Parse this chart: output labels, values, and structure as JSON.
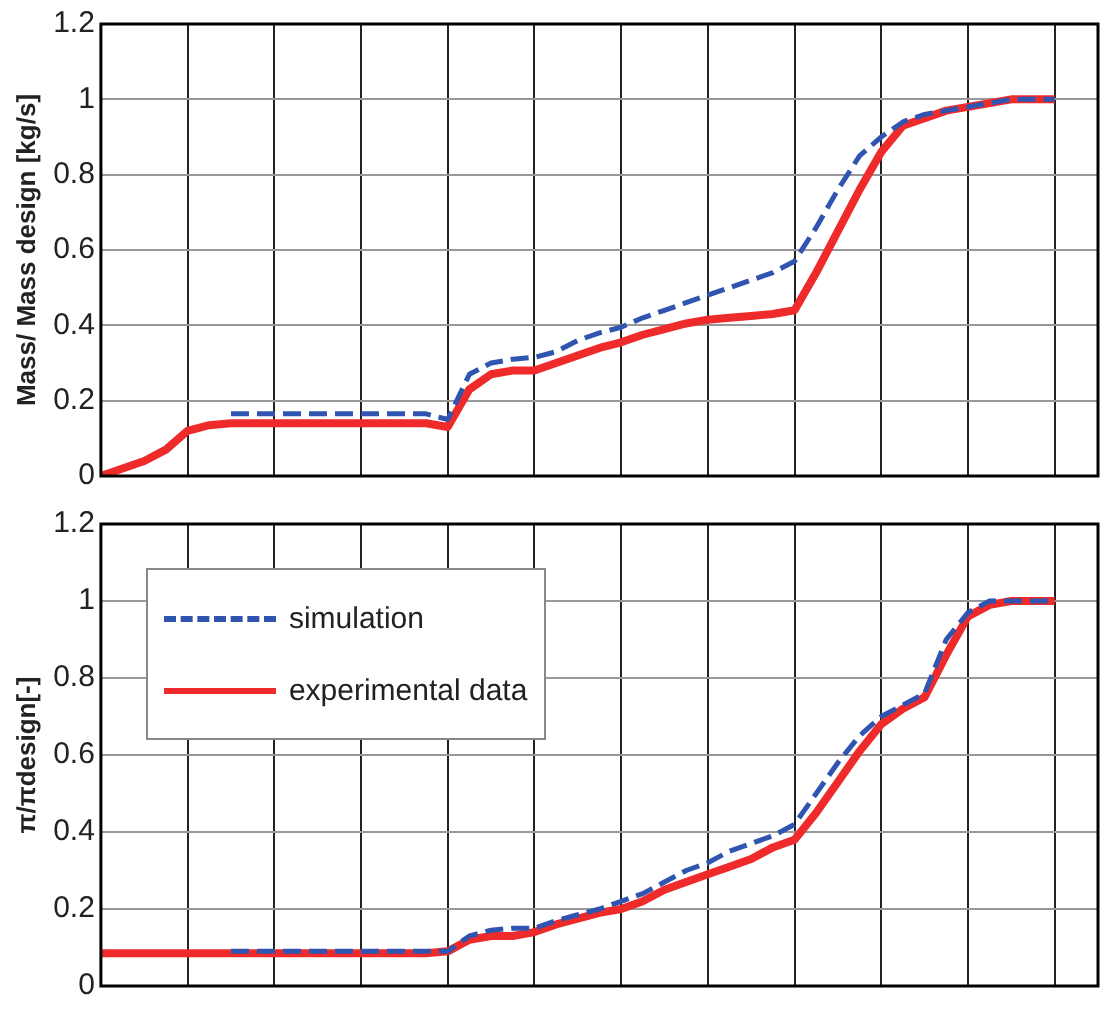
{
  "chart_data": [
    {
      "type": "line",
      "ylabel": "Mass/ Mass design [kg/s]",
      "categories": [
        null,
        null,
        null,
        null,
        null,
        null,
        null,
        null,
        null,
        null,
        null,
        null,
        null,
        null,
        null,
        null,
        null,
        null,
        null,
        null,
        null,
        null,
        null,
        null,
        null,
        null,
        null,
        null,
        null,
        null,
        null,
        null,
        null,
        null,
        null,
        null,
        null,
        null,
        null,
        null,
        null,
        null,
        null,
        null,
        null,
        null,
        null
      ],
      "ylim": [
        0,
        1.2
      ],
      "yticks": [
        0,
        0.2,
        0.4,
        0.6,
        0.8,
        1,
        1.2
      ],
      "grid": true,
      "tick_labels": "y",
      "marker": "none",
      "series": [
        {
          "color": "#2f55b0",
          "line_style": "dashed",
          "values": [
            null,
            null,
            null,
            null,
            null,
            null,
            0.165,
            0.165,
            0.165,
            0.165,
            0.165,
            0.165,
            0.165,
            0.165,
            0.165,
            0.165,
            0.15,
            0.27,
            0.3,
            0.31,
            0.315,
            0.33,
            0.36,
            0.38,
            0.395,
            0.42,
            0.44,
            0.46,
            0.48,
            0.5,
            0.52,
            0.54,
            0.57,
            0.66,
            0.76,
            0.85,
            0.9,
            0.94,
            0.96,
            0.97,
            0.98,
            0.99,
            1,
            1,
            1,
            null,
            null
          ]
        },
        {
          "color": "#ee2a2a",
          "line_style": "solid",
          "values": [
            0,
            0.02,
            0.04,
            0.07,
            0.12,
            0.135,
            0.14,
            0.14,
            0.14,
            0.14,
            0.14,
            0.14,
            0.14,
            0.14,
            0.14,
            0.14,
            0.13,
            0.23,
            0.27,
            0.28,
            0.28,
            0.3,
            0.32,
            0.34,
            0.355,
            0.375,
            0.39,
            0.405,
            0.415,
            0.42,
            0.425,
            0.43,
            0.44,
            0.54,
            0.65,
            0.76,
            0.86,
            0.93,
            0.95,
            0.97,
            0.98,
            0.99,
            1,
            1,
            1,
            null,
            null
          ]
        }
      ]
    },
    {
      "type": "line",
      "ylabel": "π/πdesign[-]",
      "categories": [
        null,
        null,
        null,
        null,
        null,
        null,
        null,
        null,
        null,
        null,
        null,
        null,
        null,
        null,
        null,
        null,
        null,
        null,
        null,
        null,
        null,
        null,
        null,
        null,
        null,
        null,
        null,
        null,
        null,
        null,
        null,
        null,
        null,
        null,
        null,
        null,
        null,
        null,
        null,
        null,
        null,
        null,
        null,
        null,
        null,
        null,
        null
      ],
      "ylim": [
        0,
        1.2
      ],
      "yticks": [
        0,
        0.2,
        0.4,
        0.6,
        0.8,
        1,
        1.2
      ],
      "grid": true,
      "tick_labels": "y",
      "marker": "none",
      "legend": "top left",
      "series": [
        {
          "name": "simulation",
          "color": "#2f55b0",
          "line_style": "dashed",
          "values": [
            null,
            null,
            null,
            null,
            null,
            null,
            0.09,
            0.09,
            0.09,
            0.09,
            0.09,
            0.09,
            0.09,
            0.09,
            0.09,
            0.09,
            0.09,
            0.13,
            0.145,
            0.15,
            0.15,
            0.17,
            0.185,
            0.2,
            0.22,
            0.24,
            0.27,
            0.3,
            0.32,
            0.35,
            0.37,
            0.39,
            0.42,
            0.5,
            0.58,
            0.65,
            0.7,
            0.73,
            0.76,
            0.9,
            0.97,
            1,
            1,
            1,
            1,
            null,
            null
          ]
        },
        {
          "name": "experimental data",
          "color": "#ee2a2a",
          "line_style": "solid",
          "values": [
            0.085,
            0.085,
            0.085,
            0.085,
            0.085,
            0.085,
            0.085,
            0.085,
            0.085,
            0.085,
            0.085,
            0.085,
            0.085,
            0.085,
            0.085,
            0.085,
            0.09,
            0.12,
            0.13,
            0.13,
            0.14,
            0.16,
            0.175,
            0.19,
            0.2,
            0.22,
            0.25,
            0.27,
            0.29,
            0.31,
            0.33,
            0.36,
            0.38,
            0.45,
            0.53,
            0.61,
            0.68,
            0.72,
            0.75,
            0.86,
            0.96,
            0.99,
            1,
            1,
            1,
            null,
            null
          ]
        }
      ]
    }
  ]
}
